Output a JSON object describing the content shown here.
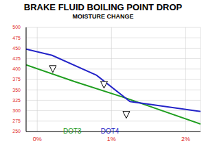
{
  "chart_data": {
    "type": "line",
    "title": "BRAKE FLUID BOILING POINT DROP",
    "subtitle": "MOISTURE CHANGE",
    "xlim": [
      -0.15,
      2.2
    ],
    "xticks": [
      {
        "value": 0,
        "label": "0%"
      },
      {
        "value": 1,
        "label": "1%"
      },
      {
        "value": 2,
        "label": "2%"
      }
    ],
    "ylim": [
      250,
      500
    ],
    "yticks": [
      250,
      275,
      300,
      325,
      350,
      375,
      400,
      425,
      450,
      475,
      500
    ],
    "grid": true,
    "legend": "bottom",
    "series": [
      {
        "name": "DOT3",
        "color": "#1f9e1f",
        "x": [
          -0.15,
          0.5,
          1.2,
          2.2
        ],
        "values": [
          410,
          370,
          330,
          268
        ]
      },
      {
        "name": "DOT4",
        "color": "#2323c8",
        "x": [
          -0.15,
          0.2,
          0.8,
          1.25,
          2.2
        ],
        "values": [
          448,
          433,
          385,
          322,
          298
        ]
      }
    ],
    "triangles": {
      "x": [
        0.21,
        0.9,
        1.2
      ],
      "y": [
        400,
        362,
        290
      ]
    }
  }
}
